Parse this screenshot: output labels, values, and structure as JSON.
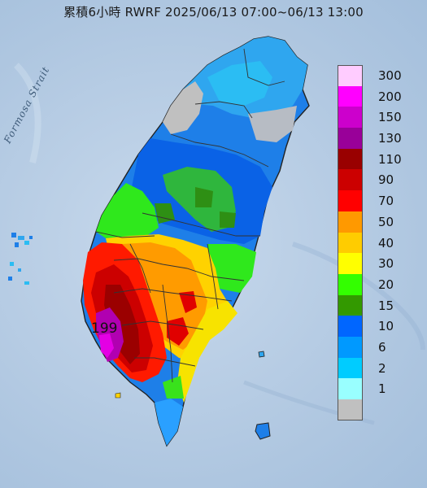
{
  "title": "累積6小時 RWRF 2025/06/13 07:00~06/13 13:00",
  "strait_label": "Formosa Strait",
  "max_value_label": "199",
  "legend": [
    {
      "label": "300",
      "color": "#ffccff"
    },
    {
      "label": "200",
      "color": "#ff00ff"
    },
    {
      "label": "150",
      "color": "#cc00cc"
    },
    {
      "label": "130",
      "color": "#990099"
    },
    {
      "label": "110",
      "color": "#990000"
    },
    {
      "label": "90",
      "color": "#cc0000"
    },
    {
      "label": "70",
      "color": "#ff0000"
    },
    {
      "label": "50",
      "color": "#ff9900"
    },
    {
      "label": "40",
      "color": "#ffcc00"
    },
    {
      "label": "30",
      "color": "#ffff00"
    },
    {
      "label": "20",
      "color": "#33ff00"
    },
    {
      "label": "15",
      "color": "#339900"
    },
    {
      "label": "10",
      "color": "#0066ff"
    },
    {
      "label": "6",
      "color": "#0099ff"
    },
    {
      "label": "2",
      "color": "#00ccff"
    },
    {
      "label": "1",
      "color": "#99ffff"
    },
    {
      "label": "",
      "color": "#c0c0c0"
    }
  ]
}
